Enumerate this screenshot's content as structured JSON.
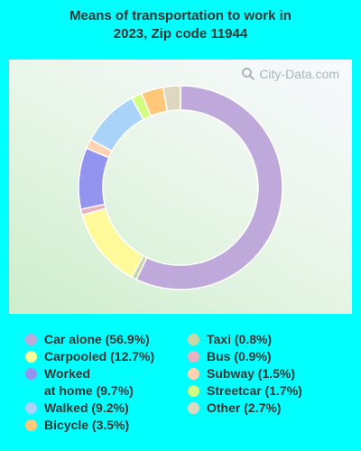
{
  "chart_data": {
    "type": "pie",
    "title": "Means of transportation to work in 2023, Zip code 11944",
    "title_lines": [
      "Means of transportation to work in",
      "2023, Zip code 11944"
    ],
    "watermark": "City-Data.com",
    "slices": [
      {
        "label": "Car alone",
        "value": 56.9,
        "color": "#BFA8DA",
        "legend": "Car alone (56.9%)"
      },
      {
        "label": "Taxi",
        "value": 0.8,
        "color": "#C9D6A8",
        "legend": "Taxi (0.8%)"
      },
      {
        "label": "Carpooled",
        "value": 12.7,
        "color": "#FFFA99",
        "legend": "Carpooled (12.7%)"
      },
      {
        "label": "Bus",
        "value": 0.9,
        "color": "#EBB0BF",
        "legend": "Bus (0.9%)"
      },
      {
        "label": "Worked at home",
        "value": 9.7,
        "color": "#9294F0",
        "legend": "Worked at home (9.7%)",
        "legend_lines": [
          "Worked",
          "at home (9.7%)"
        ]
      },
      {
        "label": "Subway",
        "value": 1.5,
        "color": "#FFD2B0",
        "legend": "Subway (1.5%)"
      },
      {
        "label": "Walked",
        "value": 9.2,
        "color": "#A9D3F8",
        "legend": "Walked (9.2%)"
      },
      {
        "label": "Streetcar",
        "value": 1.7,
        "color": "#D2FF80",
        "legend": "Streetcar (1.7%)"
      },
      {
        "label": "Bicycle",
        "value": 3.5,
        "color": "#FFC778",
        "legend": "Bicycle (3.5%)"
      },
      {
        "label": "Other",
        "value": 2.7,
        "color": "#DDD8BE",
        "legend": "Other (2.7%)"
      }
    ],
    "legend_placement": "bottom",
    "legend_columns": [
      [
        "Car alone",
        "Carpooled",
        "Worked at home",
        "Walked",
        "Bicycle"
      ],
      [
        "Taxi",
        "Bus",
        "Subway",
        "Streetcar",
        "Other"
      ]
    ]
  }
}
